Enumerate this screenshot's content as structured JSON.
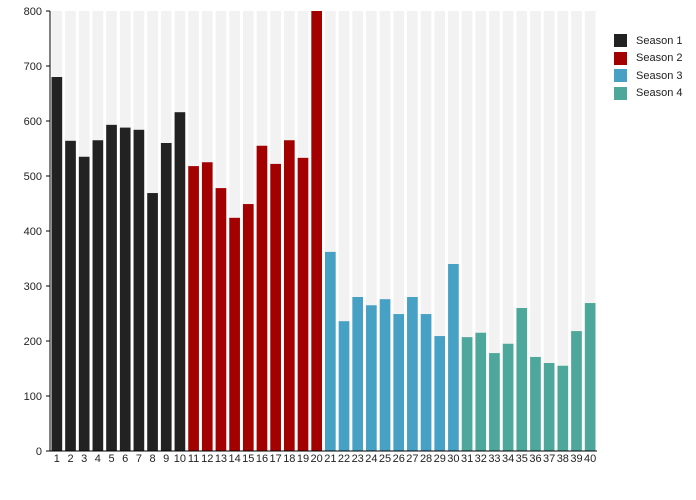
{
  "chart_data": {
    "type": "bar",
    "categories": [
      "1",
      "2",
      "3",
      "4",
      "5",
      "6",
      "7",
      "8",
      "9",
      "10",
      "11",
      "12",
      "13",
      "14",
      "15",
      "16",
      "17",
      "18",
      "19",
      "20",
      "21",
      "22",
      "23",
      "24",
      "25",
      "26",
      "27",
      "28",
      "29",
      "30",
      "31",
      "32",
      "33",
      "34",
      "35",
      "36",
      "37",
      "38",
      "39",
      "40"
    ],
    "values": [
      680,
      564,
      535,
      565,
      593,
      588,
      584,
      469,
      560,
      616,
      518,
      525,
      478,
      424,
      449,
      555,
      522,
      565,
      533,
      800,
      362,
      236,
      280,
      265,
      276,
      249,
      280,
      249,
      209,
      340,
      207,
      215,
      178,
      195,
      260,
      171,
      160,
      155,
      218,
      269
    ],
    "series": [
      {
        "name": "Season 1",
        "color": "#222222",
        "range": [
          1,
          10
        ]
      },
      {
        "name": "Season 2",
        "color": "#a30000",
        "range": [
          11,
          20
        ]
      },
      {
        "name": "Season 3",
        "color": "#47a1c4",
        "range": [
          21,
          30
        ]
      },
      {
        "name": "Season 4",
        "color": "#4da79a",
        "range": [
          31,
          40
        ]
      }
    ],
    "yticks": [
      0,
      100,
      200,
      300,
      400,
      500,
      600,
      700,
      800
    ],
    "ylim": [
      0,
      800
    ],
    "background_band_color": "#f2f2f2",
    "legend": "right"
  }
}
